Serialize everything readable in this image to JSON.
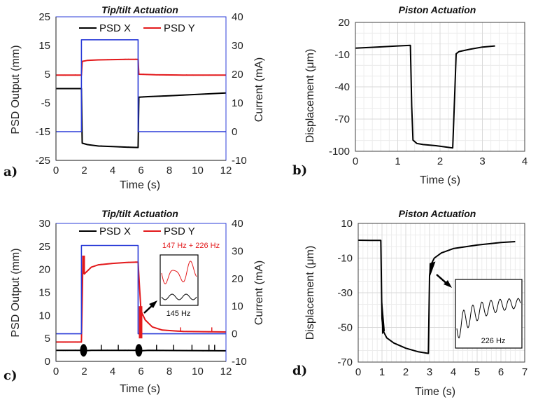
{
  "colors": {
    "psd_x": "#000000",
    "psd_y": "#e31a1c",
    "current": "#2b3cd8",
    "grid": "#d9d9d9",
    "axis": "#404040"
  },
  "chart_data": [
    {
      "panel": "a)",
      "type": "line",
      "title": "Tip/tilt Actuation",
      "xlabel": "Time (s)",
      "ylabel": "PSD Output (mm)",
      "y2label": "Current (mA)",
      "xlim": [
        0,
        12
      ],
      "ylim": [
        -25,
        25
      ],
      "y2lim": [
        -10,
        40
      ],
      "xticks": [
        "0",
        "2",
        "4",
        "6",
        "8",
        "10",
        "12"
      ],
      "yticks": [
        "25",
        "15",
        "5",
        "-5",
        "-15",
        "-25"
      ],
      "y2ticks": [
        "40",
        "30",
        "20",
        "10",
        "0",
        "-10"
      ],
      "grid": false,
      "legend": "top",
      "series": [
        {
          "name": "PSD X",
          "axis": "left",
          "x": [
            0,
            1.8,
            1.85,
            2.2,
            3,
            4,
            5,
            5.8,
            5.85,
            6.5,
            8,
            10,
            12
          ],
          "y": [
            0,
            0,
            -19,
            -19.5,
            -20,
            -20.2,
            -20.4,
            -20.5,
            -3,
            -2.8,
            -2.5,
            -2,
            -1.5
          ]
        },
        {
          "name": "PSD Y",
          "axis": "left",
          "x": [
            0,
            1.8,
            1.85,
            2.2,
            3,
            4,
            5,
            5.8,
            5.85,
            7,
            9,
            12
          ],
          "y": [
            4.7,
            4.7,
            9.5,
            9.8,
            10,
            10.1,
            10.2,
            10.2,
            5,
            4.8,
            4.7,
            4.7
          ]
        },
        {
          "name": "",
          "axis": "right",
          "x": [
            0,
            1.8,
            1.8,
            5.8,
            5.8,
            12
          ],
          "y": [
            0,
            0,
            32,
            32,
            0,
            0
          ]
        }
      ]
    },
    {
      "panel": "b)",
      "type": "line",
      "title": "Piston Actuation",
      "xlabel": "Time (s)",
      "ylabel": "Displacement  (μm)",
      "xlim": [
        0,
        4
      ],
      "ylim": [
        -95,
        20
      ],
      "xticks": [
        "0",
        "1",
        "2",
        "3",
        "4"
      ],
      "yticks": [
        "20",
        "-10",
        "-40",
        "-70",
        "-100"
      ],
      "grid": true,
      "series": [
        {
          "name": "",
          "x": [
            0,
            0.5,
            1.0,
            1.3,
            1.33,
            1.36,
            1.45,
            1.6,
            1.9,
            2.3,
            2.35,
            2.38,
            2.45,
            2.7,
            3.0,
            3.3
          ],
          "y": [
            -3,
            -2,
            -1,
            -0.5,
            -55,
            -85,
            -88,
            -89,
            -90,
            -92,
            -40,
            -8,
            -6,
            -4,
            -2,
            -1
          ]
        }
      ]
    },
    {
      "panel": "c)",
      "type": "line",
      "title": "Tip/tilt Actuation",
      "xlabel": "Time (s)",
      "ylabel": "PSD Output (mm)",
      "y2label": "Current (mA)",
      "xlim": [
        0,
        12
      ],
      "ylim": [
        0,
        30
      ],
      "y2lim": [
        -10,
        40
      ],
      "xticks": [
        "0",
        "2",
        "4",
        "6",
        "8",
        "10",
        "12"
      ],
      "yticks": [
        "30",
        "25",
        "20",
        "15",
        "10",
        "5",
        "0"
      ],
      "y2ticks": [
        "40",
        "30",
        "20",
        "10",
        "0",
        "-10"
      ],
      "grid": false,
      "legend": "top",
      "annotations": [
        "147 Hz + 226 Hz",
        "145 Hz"
      ],
      "series": [
        {
          "name": "PSD X",
          "axis": "left",
          "x": [
            0,
            1.8,
            2.0,
            2.5,
            5.5,
            5.8,
            6.0,
            6.5,
            12
          ],
          "y": [
            2.4,
            2.4,
            2.3,
            2.4,
            2.4,
            2.4,
            2.3,
            2.4,
            2.3
          ]
        },
        {
          "name": "PSD Y",
          "axis": "left",
          "x": [
            0,
            1.8,
            1.9,
            2.0,
            2.5,
            3,
            4,
            5,
            5.8,
            5.9,
            6.0,
            6.3,
            6.8,
            7.5,
            9,
            12
          ],
          "y": [
            4.2,
            4.2,
            22,
            19,
            20.5,
            21,
            21.3,
            21.5,
            21.6,
            16,
            11,
            9,
            7.5,
            6.8,
            6.5,
            6.4
          ]
        },
        {
          "name": "",
          "axis": "right",
          "x": [
            0,
            1.8,
            1.8,
            5.8,
            5.8,
            12
          ],
          "y": [
            0,
            0,
            32,
            32,
            0,
            0
          ]
        }
      ]
    },
    {
      "panel": "d)",
      "type": "line",
      "title": "Piston Actuation",
      "xlabel": "Time (s)",
      "ylabel": "Displacement (μm)",
      "xlim": [
        0,
        7
      ],
      "ylim": [
        -70,
        10
      ],
      "xticks": [
        "0",
        "1",
        "2",
        "3",
        "4",
        "5",
        "6",
        "7"
      ],
      "yticks": [
        "10",
        "-10",
        "-30",
        "-50",
        "-70"
      ],
      "grid": true,
      "annotations": [
        "226 Hz"
      ],
      "series": [
        {
          "name": "",
          "x": [
            0,
            0.5,
            0.95,
            1.0,
            1.05,
            1.2,
            1.5,
            2.0,
            2.5,
            2.95,
            3.0,
            3.05,
            3.2,
            3.5,
            4,
            5,
            6,
            6.6
          ],
          "y": [
            0.3,
            0.2,
            0.2,
            -45,
            -52,
            -56,
            -59,
            -62,
            -64,
            -65,
            -20,
            -14,
            -10,
            -7,
            -4.5,
            -2.5,
            -1,
            -0.5
          ]
        }
      ]
    }
  ]
}
